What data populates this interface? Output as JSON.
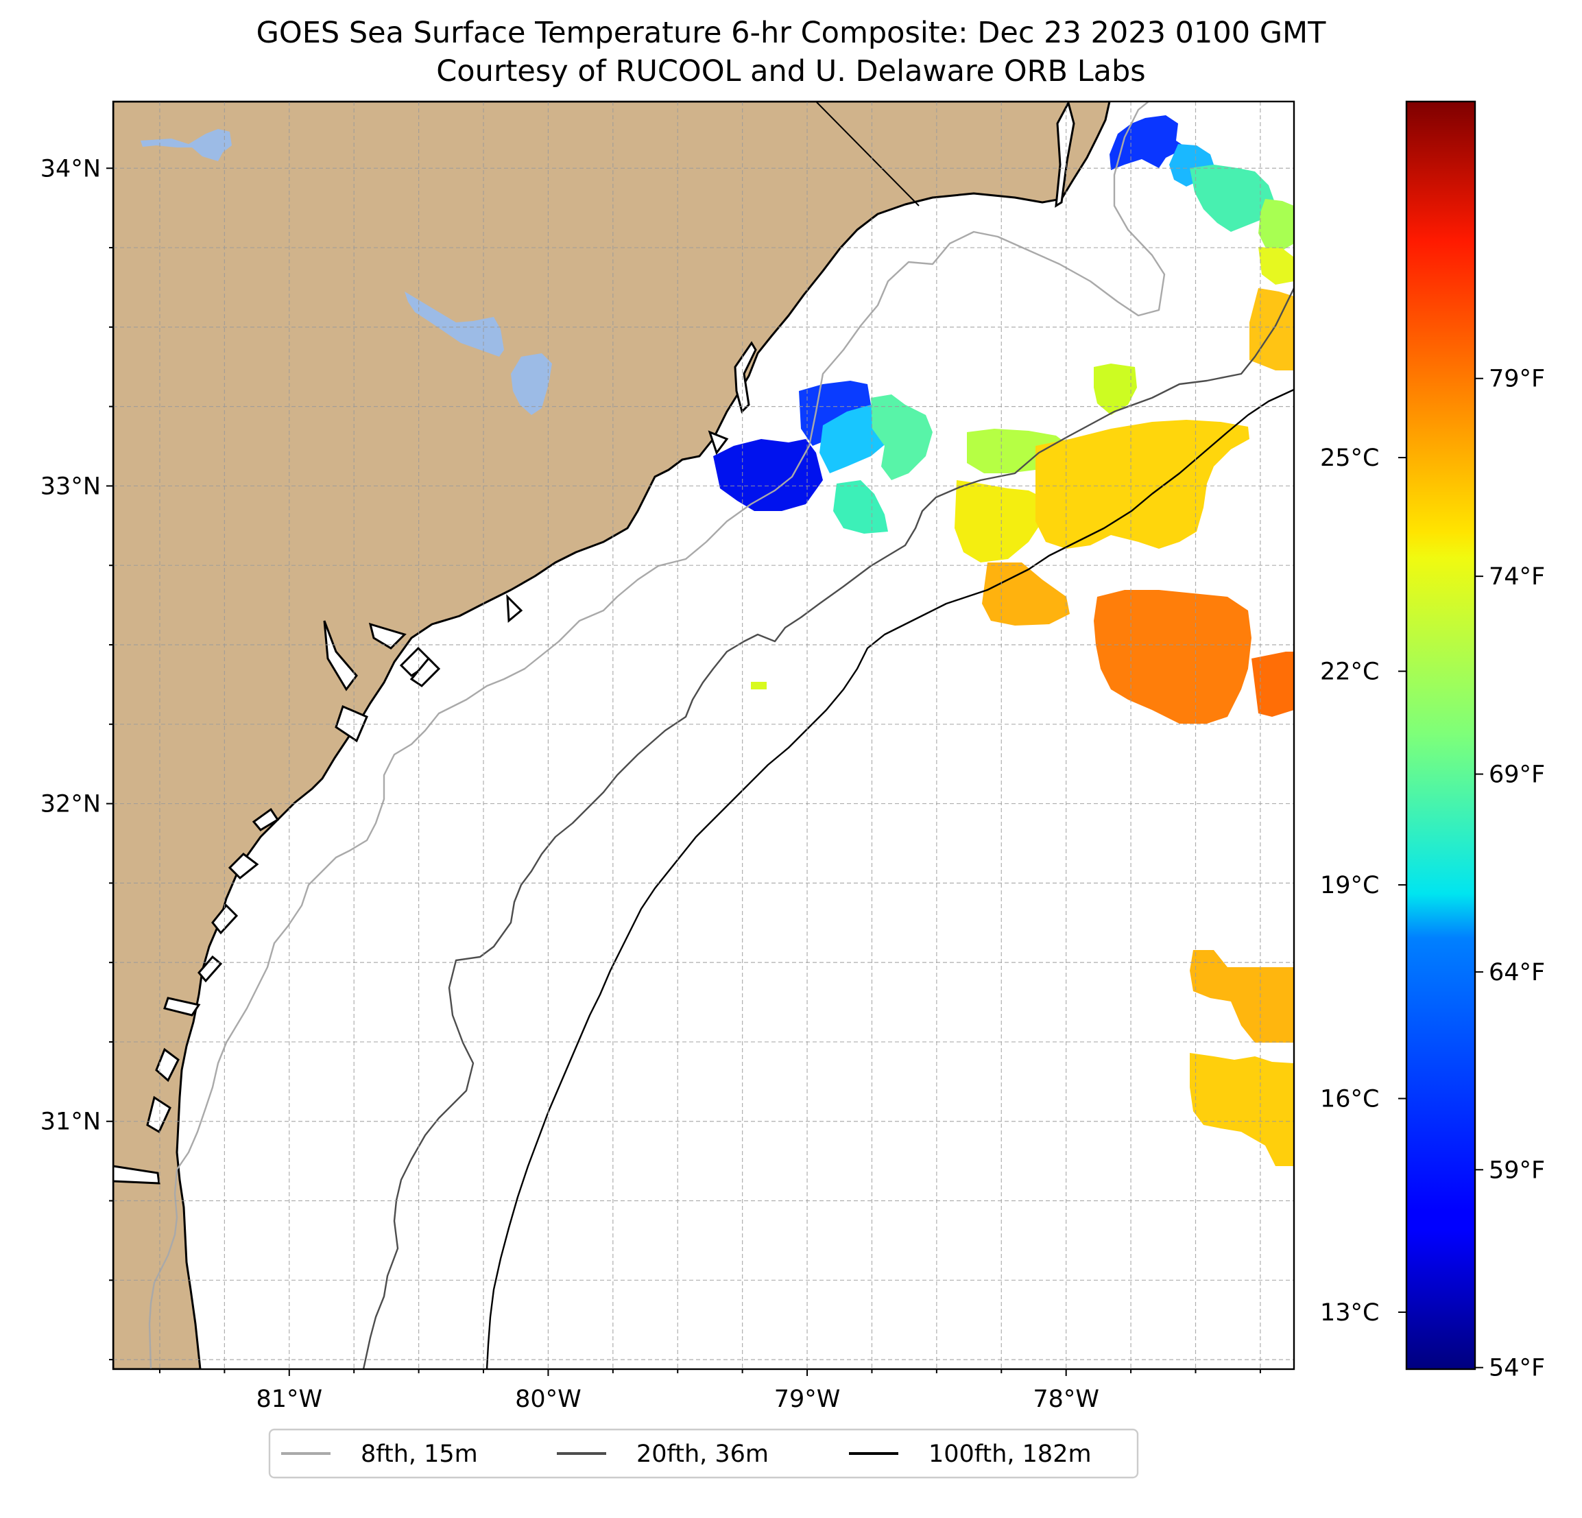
{
  "title": "GOES Sea Surface Temperature 6-hr Composite: Dec 23 2023 0100 GMT",
  "subtitle": "Courtesy of RUCOOL and U. Delaware ORB Labs",
  "map": {
    "lon_range": [
      -81.68,
      -77.12
    ],
    "lat_range": [
      30.22,
      34.21
    ],
    "lat_ticks": [
      {
        "value": 34,
        "label": "34°N"
      },
      {
        "value": 33,
        "label": "33°N"
      },
      {
        "value": 32,
        "label": "32°N"
      },
      {
        "value": 31,
        "label": "31°N"
      }
    ],
    "lon_ticks": [
      {
        "value": -81,
        "label": "81°W"
      },
      {
        "value": -80,
        "label": "80°W"
      },
      {
        "value": -79,
        "label": "79°W"
      },
      {
        "value": -78,
        "label": "78°W"
      }
    ],
    "land_color": "#d0b38b",
    "lake_color": "#9cbbe6"
  },
  "colorbar": {
    "range_c": [
      12.2,
      30.0
    ],
    "celsius_ticks": [
      {
        "value": 13,
        "label": "13°C"
      },
      {
        "value": 16,
        "label": "16°C"
      },
      {
        "value": 19,
        "label": "19°C"
      },
      {
        "value": 22,
        "label": "22°C"
      },
      {
        "value": 25,
        "label": "25°C"
      }
    ],
    "fahrenheit_ticks": [
      {
        "value": 54,
        "label": "54°F"
      },
      {
        "value": 59,
        "label": "59°F"
      },
      {
        "value": 64,
        "label": "64°F"
      },
      {
        "value": 69,
        "label": "69°F"
      },
      {
        "value": 74,
        "label": "74°F"
      },
      {
        "value": 79,
        "label": "79°F"
      }
    ]
  },
  "legend": {
    "items": [
      {
        "label": "8fth, 15m",
        "color": "#a9a9a9"
      },
      {
        "label": "20fth, 36m",
        "color": "#4d4d4d"
      },
      {
        "label": "100fth, 182m",
        "color": "#000000"
      }
    ]
  }
}
